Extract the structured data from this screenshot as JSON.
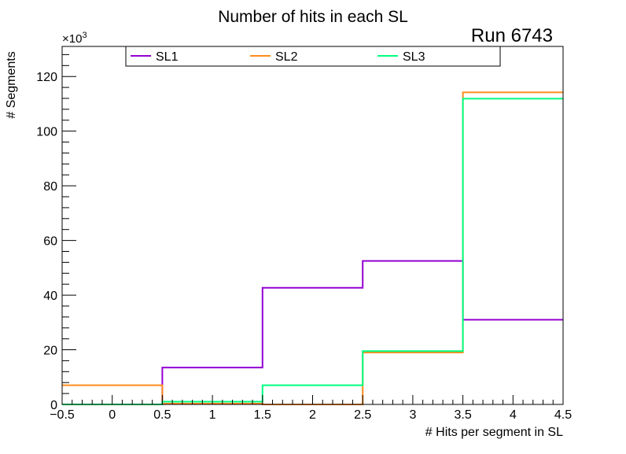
{
  "chart_data": {
    "type": "step",
    "title": "Number of hits in each SL",
    "annotation": "Run 6743",
    "xlabel": "# Hits per segment in SL",
    "ylabel": "# Segments",
    "y_multiplier": "×10",
    "y_multiplier_exp": "3",
    "xlim": [
      -0.5,
      4.5
    ],
    "ylim": [
      0,
      131
    ],
    "x_ticks": [
      -0.5,
      0,
      0.5,
      1,
      1.5,
      2,
      2.5,
      3,
      3.5,
      4,
      4.5
    ],
    "x_tick_labels": [
      "−0.5",
      "0",
      "0.5",
      "1",
      "1.5",
      "2",
      "2.5",
      "3",
      "3.5",
      "4",
      "4.5"
    ],
    "y_ticks": [
      0,
      20,
      40,
      60,
      80,
      100,
      120
    ],
    "y_tick_labels": [
      "0",
      "20",
      "40",
      "60",
      "80",
      "100",
      "120"
    ],
    "bin_edges": [
      -0.5,
      0.5,
      1.5,
      2.5,
      3.5,
      4.5
    ],
    "bin_centers": [
      0,
      1,
      2,
      3,
      4
    ],
    "legend_position": "top",
    "grid": false,
    "series": [
      {
        "name": "SL1",
        "color": "#9400d3",
        "values": [
          0,
          13.5,
          42.7,
          52.5,
          31.0
        ]
      },
      {
        "name": "SL2",
        "color": "#ff8c1a",
        "values": [
          7.0,
          0.3,
          0.0,
          19.0,
          114.2
        ]
      },
      {
        "name": "SL3",
        "color": "#00ff7f",
        "values": [
          0,
          1.0,
          7.0,
          19.5,
          111.9
        ]
      }
    ]
  }
}
